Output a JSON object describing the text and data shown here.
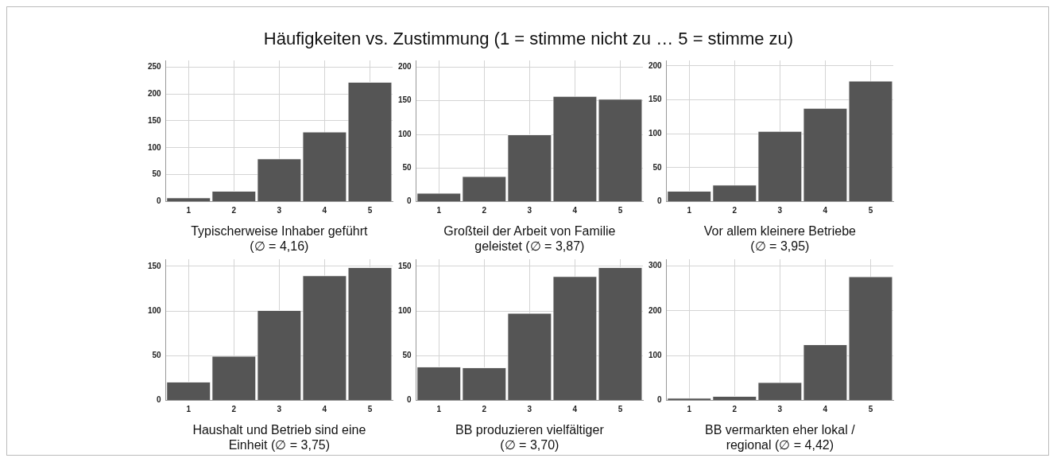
{
  "chart_data": [
    {
      "type": "bar",
      "title": "Häufigkeiten vs. Zustimmung (1 = stimme nicht zu … 5 = stimme zu)",
      "xlabel": "Typischerweise Inhaber geführt\n(∅ = 4,16)",
      "categories": [
        "1",
        "2",
        "3",
        "4",
        "5"
      ],
      "values": [
        8,
        20,
        80,
        130,
        222
      ],
      "color": "#555555",
      "ylim": [
        0,
        262
      ],
      "yticks": [
        0,
        50,
        100,
        150,
        200,
        250
      ],
      "grid": true
    },
    {
      "type": "bar",
      "xlabel": "Großteil der Arbeit von Familie\ngeleistet (∅ = 3,87)",
      "categories": [
        "1",
        "2",
        "3",
        "4",
        "5"
      ],
      "values": [
        13,
        38,
        100,
        157,
        153
      ],
      "color": "#555555",
      "ylim": [
        0,
        210
      ],
      "yticks": [
        0,
        50,
        100,
        150,
        200
      ],
      "grid": true
    },
    {
      "type": "bar",
      "xlabel": "Vor allem kleinere Betriebe\n(∅ = 3,95)",
      "categories": [
        "1",
        "2",
        "3",
        "4",
        "5"
      ],
      "values": [
        16,
        25,
        104,
        138,
        178
      ],
      "color": "#555555",
      "ylim": [
        0,
        208
      ],
      "yticks": [
        0,
        50,
        100,
        150,
        200
      ],
      "grid": true
    },
    {
      "type": "bar",
      "xlabel": "Haushalt und Betrieb sind eine\nEinheit (∅ = 3,75)",
      "categories": [
        "1",
        "2",
        "3",
        "4",
        "5"
      ],
      "values": [
        21,
        50,
        101,
        140,
        149
      ],
      "color": "#555555",
      "ylim": [
        0,
        158
      ],
      "yticks": [
        0,
        50,
        100,
        150
      ],
      "grid": true
    },
    {
      "type": "bar",
      "xlabel": "BB produzieren vielfältiger\n(∅ = 3,70)",
      "categories": [
        "1",
        "2",
        "3",
        "4",
        "5"
      ],
      "values": [
        38,
        37,
        98,
        139,
        149
      ],
      "color": "#555555",
      "ylim": [
        0,
        158
      ],
      "yticks": [
        0,
        50,
        100,
        150
      ],
      "grid": true
    },
    {
      "type": "bar",
      "xlabel": "BB vermarkten eher lokal /\nregional (∅ = 4,42)",
      "categories": [
        "1",
        "2",
        "3",
        "4",
        "5"
      ],
      "values": [
        6,
        10,
        41,
        125,
        277
      ],
      "color": "#555555",
      "ylim": [
        0,
        315
      ],
      "yticks": [
        0,
        100,
        200,
        300
      ],
      "grid": true
    }
  ]
}
